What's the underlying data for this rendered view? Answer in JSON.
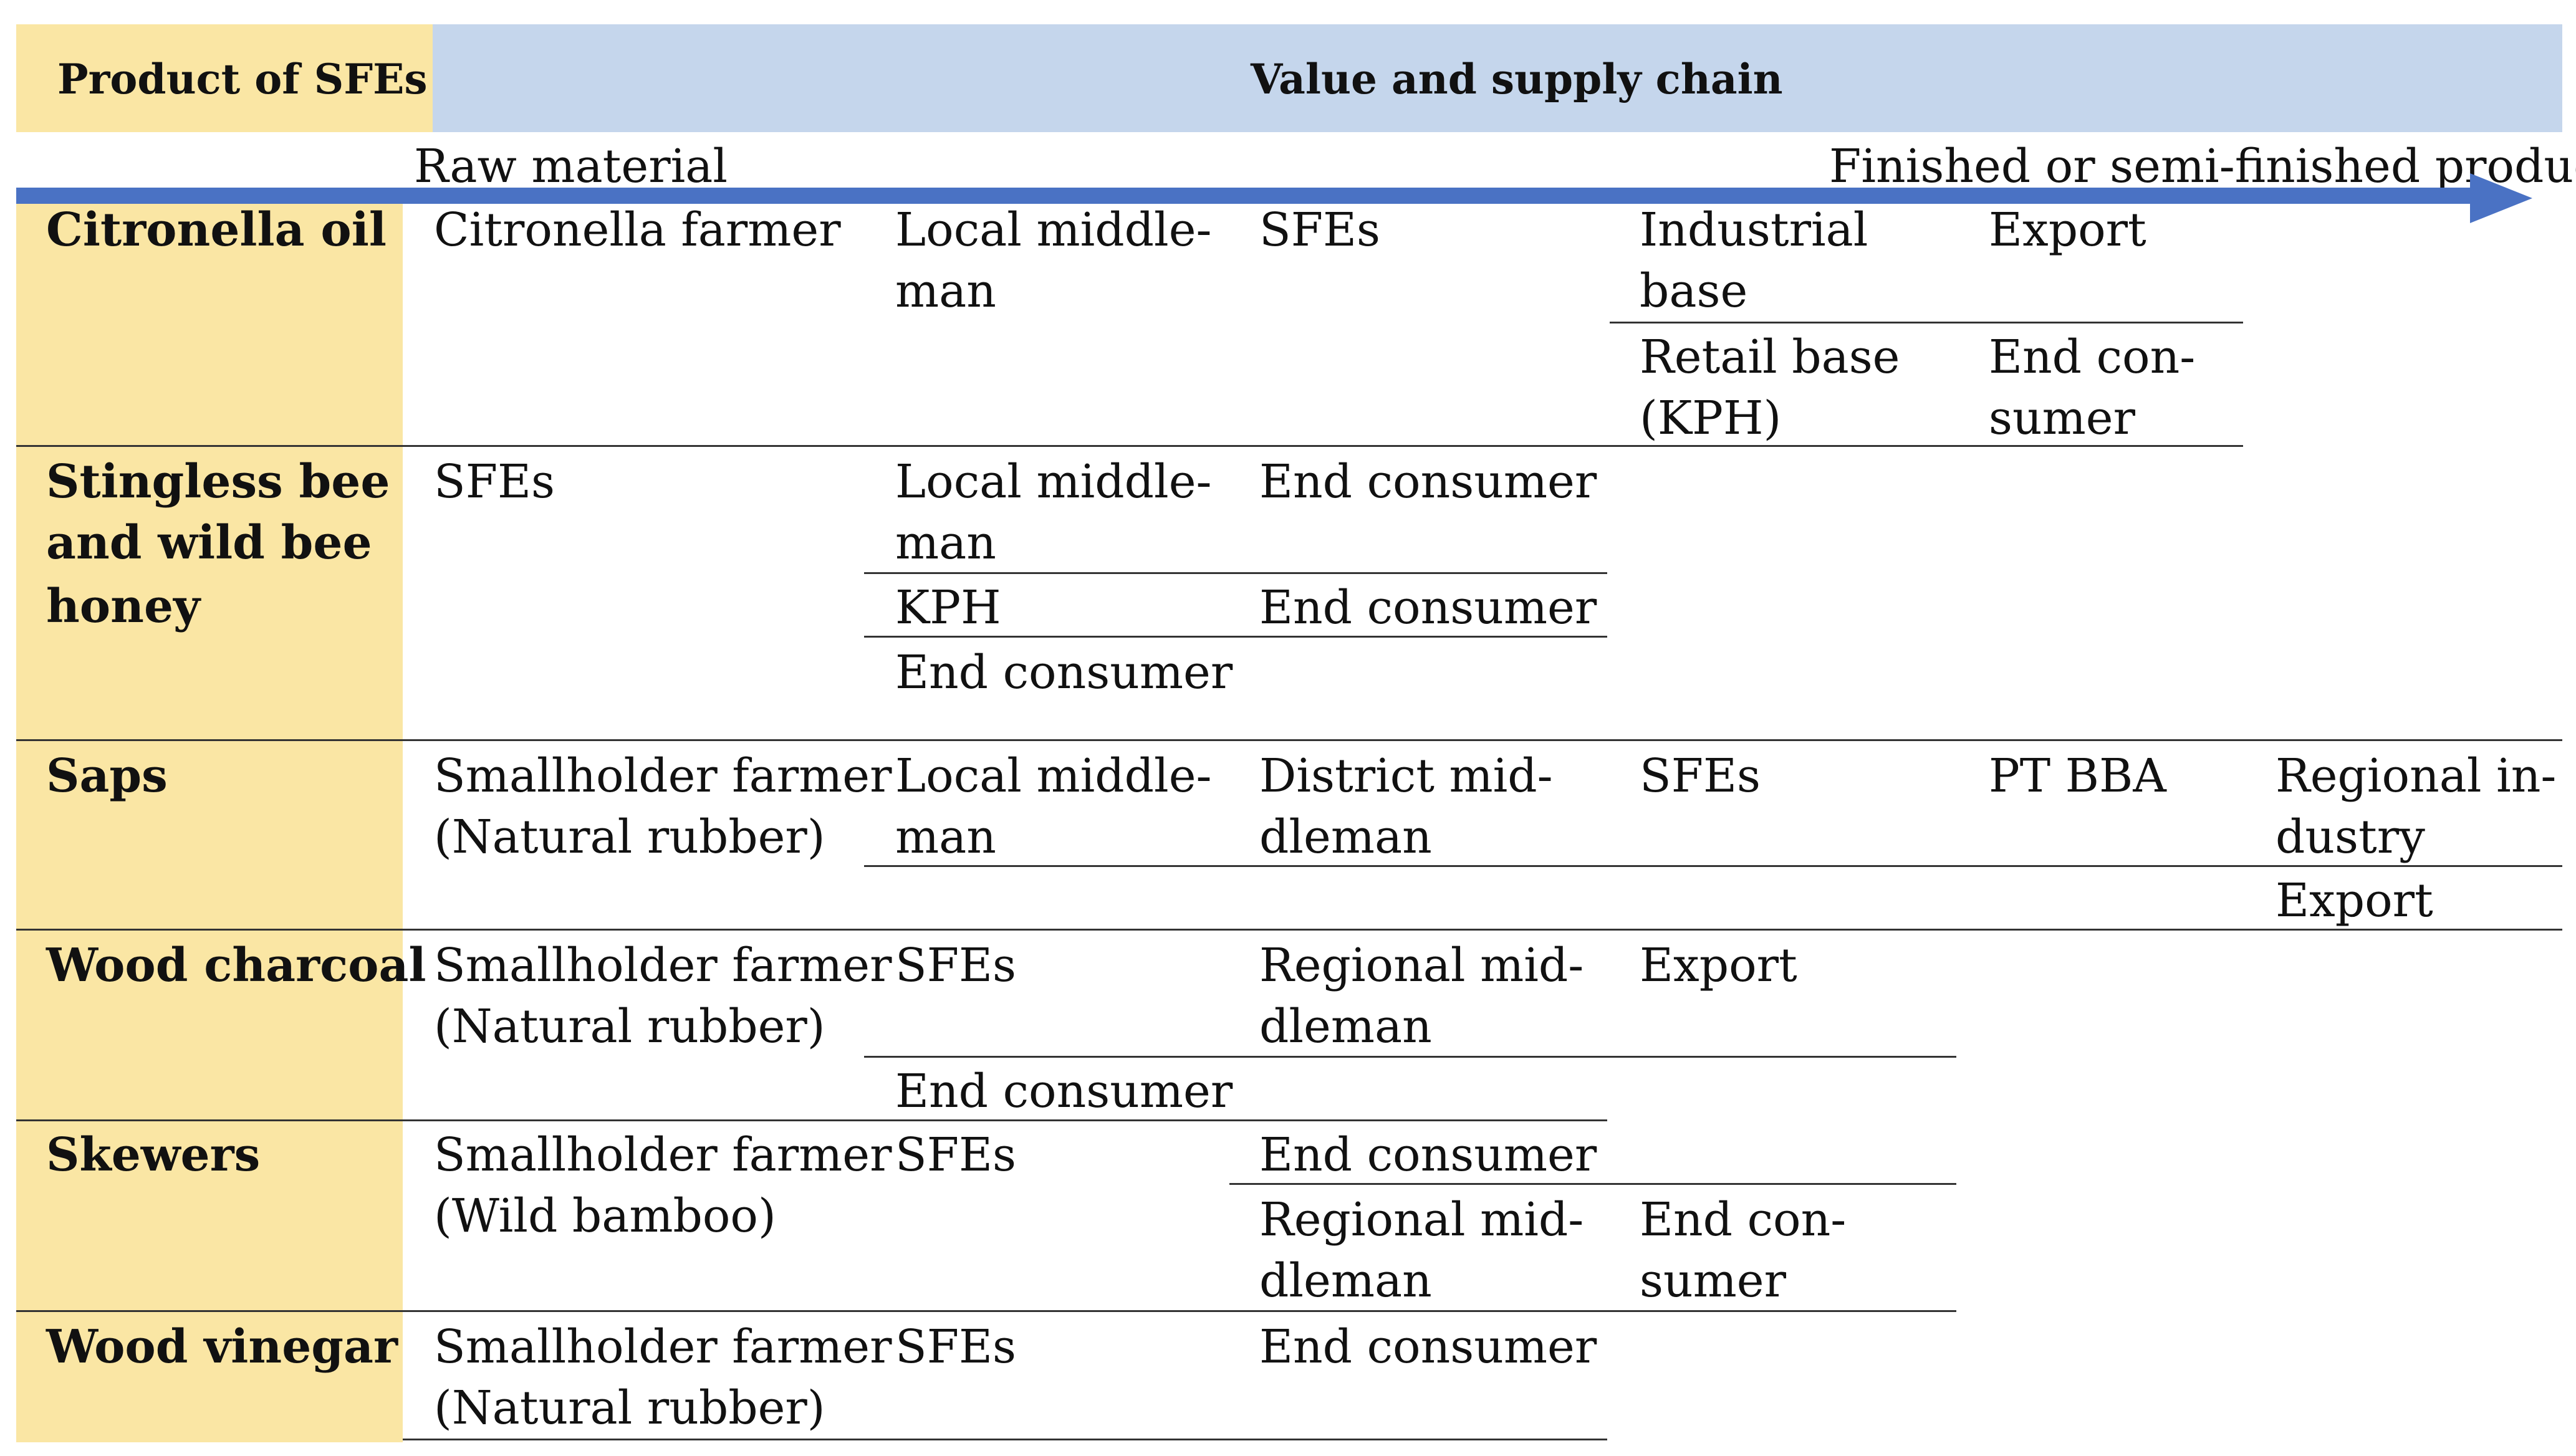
{
  "header": {
    "product_col": "Product of SFEs",
    "chain_col": "Value and supply chain",
    "raw_material": "Raw material",
    "finished": "Finished or semi-finished products"
  },
  "rows": {
    "citronella": {
      "label": "Citronella oil",
      "c1": "Citronella farmer",
      "c2a": "Local middle-",
      "c2b": "man",
      "c3": "SFEs",
      "c4a_1": "Industrial",
      "c4a_2": "base",
      "c5a": "Export",
      "c4b_1": "Retail base",
      "c4b_2": "(KPH)",
      "c5b_1": "End con-",
      "c5b_2": "sumer"
    },
    "honey": {
      "label_1": "Stingless bee",
      "label_2": "and wild bee",
      "label_3": "honey",
      "c1": "SFEs",
      "c2a_1": "Local middle-",
      "c2a_2": "man",
      "c3a": "End consumer",
      "c2b": "KPH",
      "c3b": "End consumer",
      "c2c": "End consumer"
    },
    "saps": {
      "label": "Saps",
      "c1_1": "Smallholder farmer",
      "c1_2": "(Natural rubber)",
      "c2_1": "Local middle-",
      "c2_2": "man",
      "c3_1": "District mid-",
      "c3_2": "dleman",
      "c4": "SFEs",
      "c5": "PT BBA",
      "c6a_1": "Regional in-",
      "c6a_2": "dustry",
      "c6b": "Export"
    },
    "charcoal": {
      "label": "Wood charcoal",
      "c1_1": "Smallholder farmer",
      "c1_2": "(Natural rubber)",
      "c2a": "SFEs",
      "c3a_1": "Regional mid-",
      "c3a_2": "dleman",
      "c4a": "Export",
      "c2b": "End consumer"
    },
    "skewers": {
      "label": "Skewers",
      "c1_1": "Smallholder farmer",
      "c1_2": "(Wild bamboo)",
      "c2": "SFEs",
      "c3a": "End consumer",
      "c3b_1": "Regional mid-",
      "c3b_2": "dleman",
      "c4b_1": "End con-",
      "c4b_2": "sumer"
    },
    "vinegar": {
      "label": "Wood vinegar",
      "c1_1": "Smallholder farmer",
      "c1_2": "(Natural rubber)",
      "c2": "SFEs",
      "c3": "End consumer"
    }
  }
}
